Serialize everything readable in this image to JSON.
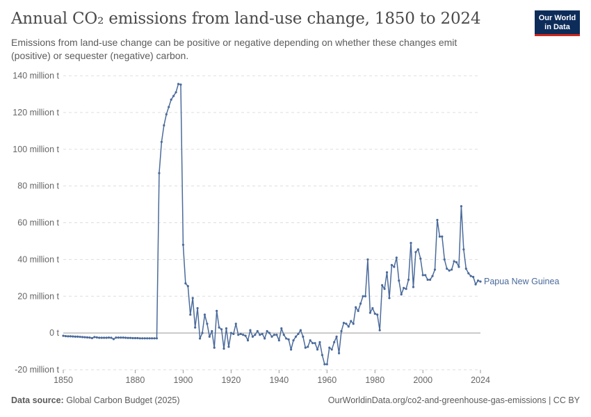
{
  "header": {
    "title": "Annual CO₂ emissions from land-use change, 1850 to 2024",
    "subtitle": "Emissions from land-use change can be positive or negative depending on whether these changes emit (positive) or sequester (negative) carbon."
  },
  "logo": {
    "line1": "Our World",
    "line2": "in Data"
  },
  "footer": {
    "source_label": "Data source:",
    "source_value": "Global Carbon Budget (2025)",
    "link": "OurWorldinData.org/co2-and-greenhouse-gas-emissions | CC BY"
  },
  "colors": {
    "line": "#4a6a9b",
    "grid": "#dddddd",
    "zero": "#999999",
    "logo_bg": "#0d2c5a",
    "logo_accent": "#ce261e"
  },
  "chart_data": {
    "type": "line",
    "title": "Annual CO₂ emissions from land-use change, 1850 to 2024",
    "xlabel": "",
    "ylabel": "",
    "xlim": [
      1850,
      2024
    ],
    "ylim": [
      -20000000,
      140000000
    ],
    "y_ticks": [
      -20000000,
      0,
      20000000,
      40000000,
      60000000,
      80000000,
      100000000,
      120000000,
      140000000
    ],
    "y_tick_labels": [
      "-20 million t",
      "0 t",
      "20 million t",
      "40 million t",
      "60 million t",
      "80 million t",
      "100 million t",
      "120 million t",
      "140 million t"
    ],
    "x_ticks": [
      1850,
      1880,
      1900,
      1920,
      1940,
      1960,
      1980,
      2000,
      2024
    ],
    "x_tick_labels": [
      "1850",
      "1880",
      "1900",
      "1920",
      "1940",
      "1960",
      "1980",
      "2000",
      "2024"
    ],
    "grid": true,
    "series": [
      {
        "name": "Papua New Guinea",
        "x": [
          1850,
          1851,
          1852,
          1853,
          1854,
          1855,
          1856,
          1857,
          1858,
          1859,
          1860,
          1861,
          1862,
          1863,
          1864,
          1865,
          1866,
          1867,
          1868,
          1869,
          1870,
          1871,
          1872,
          1873,
          1874,
          1875,
          1876,
          1877,
          1878,
          1879,
          1880,
          1881,
          1882,
          1883,
          1884,
          1885,
          1886,
          1887,
          1888,
          1889,
          1890,
          1891,
          1892,
          1893,
          1894,
          1895,
          1896,
          1897,
          1898,
          1899,
          1900,
          1901,
          1902,
          1903,
          1904,
          1905,
          1906,
          1907,
          1908,
          1909,
          1910,
          1911,
          1912,
          1913,
          1914,
          1915,
          1916,
          1917,
          1918,
          1919,
          1920,
          1921,
          1922,
          1923,
          1924,
          1925,
          1926,
          1927,
          1928,
          1929,
          1930,
          1931,
          1932,
          1933,
          1934,
          1935,
          1936,
          1937,
          1938,
          1939,
          1940,
          1941,
          1942,
          1943,
          1944,
          1945,
          1946,
          1947,
          1948,
          1949,
          1950,
          1951,
          1952,
          1953,
          1954,
          1955,
          1956,
          1957,
          1958,
          1959,
          1960,
          1961,
          1962,
          1963,
          1964,
          1965,
          1966,
          1967,
          1968,
          1969,
          1970,
          1971,
          1972,
          1973,
          1974,
          1975,
          1976,
          1977,
          1978,
          1979,
          1980,
          1981,
          1982,
          1983,
          1984,
          1985,
          1986,
          1987,
          1988,
          1989,
          1990,
          1991,
          1992,
          1993,
          1994,
          1995,
          1996,
          1997,
          1998,
          1999,
          2000,
          2001,
          2002,
          2003,
          2004,
          2005,
          2006,
          2007,
          2008,
          2009,
          2010,
          2011,
          2012,
          2013,
          2014,
          2015,
          2016,
          2017,
          2018,
          2019,
          2020,
          2021,
          2022,
          2023,
          2024
        ],
        "values": [
          -1.5,
          -1.7,
          -1.8,
          -1.8,
          -1.9,
          -2.0,
          -2.0,
          -2.1,
          -2.2,
          -2.3,
          -2.4,
          -2.5,
          -2.8,
          -2.2,
          -2.4,
          -2.6,
          -2.6,
          -2.6,
          -2.6,
          -2.5,
          -2.6,
          -3.3,
          -2.5,
          -2.5,
          -2.5,
          -2.5,
          -2.6,
          -2.7,
          -2.7,
          -2.8,
          -2.8,
          -2.8,
          -2.9,
          -2.9,
          -2.9,
          -2.9,
          -2.9,
          -2.9,
          -2.9,
          -2.9,
          87,
          104,
          113,
          119,
          123,
          127,
          129,
          131,
          135.5,
          135.2,
          48,
          27,
          25.5,
          10,
          19,
          3,
          13.5,
          -3,
          0,
          10,
          5,
          -2,
          1,
          -8,
          12,
          3,
          2,
          -8.5,
          2.5,
          -7.5,
          0,
          -0.5,
          5,
          -1,
          -0.5,
          -1,
          -1.5,
          -4,
          1.5,
          -2,
          -1,
          1,
          -1,
          -0.5,
          -3,
          1,
          0,
          -2,
          -1,
          -1,
          -4,
          2.5,
          -1,
          -3,
          -3.5,
          -9,
          -4,
          -2,
          -0.5,
          1.5,
          -2,
          -8,
          -7.5,
          -4,
          -5.5,
          -5.5,
          -9,
          -5,
          -12,
          -17,
          -17,
          -8,
          -9,
          -5,
          -2,
          -11,
          1,
          5.5,
          5,
          3.5,
          6.5,
          5,
          14,
          12,
          16,
          20,
          20,
          40,
          11,
          13.5,
          10.5,
          10,
          1.5,
          26,
          24,
          33,
          19,
          37,
          36,
          41,
          28.5,
          21,
          24.5,
          24,
          29,
          49,
          25,
          44,
          45.5,
          40.5,
          31.5,
          31.5,
          29,
          29,
          31,
          34.5,
          61.5,
          52.5,
          52.5,
          40,
          35,
          34,
          34.5,
          39,
          38.5,
          36,
          69,
          45.5,
          35,
          32.5,
          31,
          30.5,
          26.5,
          28.5,
          28
        ]
      }
    ],
    "units": "million t"
  }
}
